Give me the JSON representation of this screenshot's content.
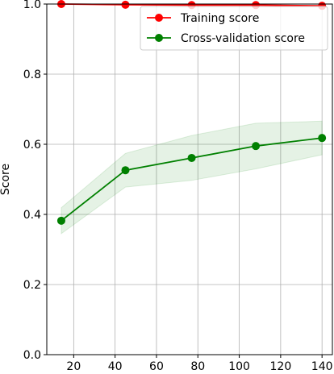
{
  "chart_data": {
    "type": "line",
    "title": "",
    "xlabel": "",
    "ylabel": "Score",
    "xlim": [
      7,
      145
    ],
    "ylim": [
      0.0,
      1.0
    ],
    "x_ticks": [
      20,
      40,
      60,
      80,
      100,
      120,
      140
    ],
    "y_ticks": [
      0.0,
      0.2,
      0.4,
      0.6,
      0.8,
      1.0
    ],
    "x_tick_labels": [
      "20",
      "40",
      "60",
      "80",
      "100",
      "120",
      "140"
    ],
    "y_tick_labels": [
      "0.0",
      "0.2",
      "0.4",
      "0.6",
      "0.8",
      "1.0"
    ],
    "grid": true,
    "legend_position": "top-right",
    "x": [
      14,
      45,
      77,
      108,
      140
    ],
    "series": [
      {
        "name": "Training score",
        "color": "#ff0000",
        "values": [
          1.0,
          0.998,
          0.997,
          0.997,
          0.995
        ],
        "band_lower": [
          1.0,
          0.998,
          0.997,
          0.997,
          0.995
        ],
        "band_upper": [
          1.0,
          0.998,
          0.997,
          0.997,
          0.995
        ],
        "band_color": "#ff0000"
      },
      {
        "name": "Cross-validation score",
        "color": "#008000",
        "values": [
          0.382,
          0.526,
          0.561,
          0.595,
          0.618
        ],
        "band_lower": [
          0.345,
          0.478,
          0.497,
          0.53,
          0.57
        ],
        "band_upper": [
          0.419,
          0.574,
          0.625,
          0.66,
          0.666
        ],
        "band_color": "#008000"
      }
    ]
  }
}
